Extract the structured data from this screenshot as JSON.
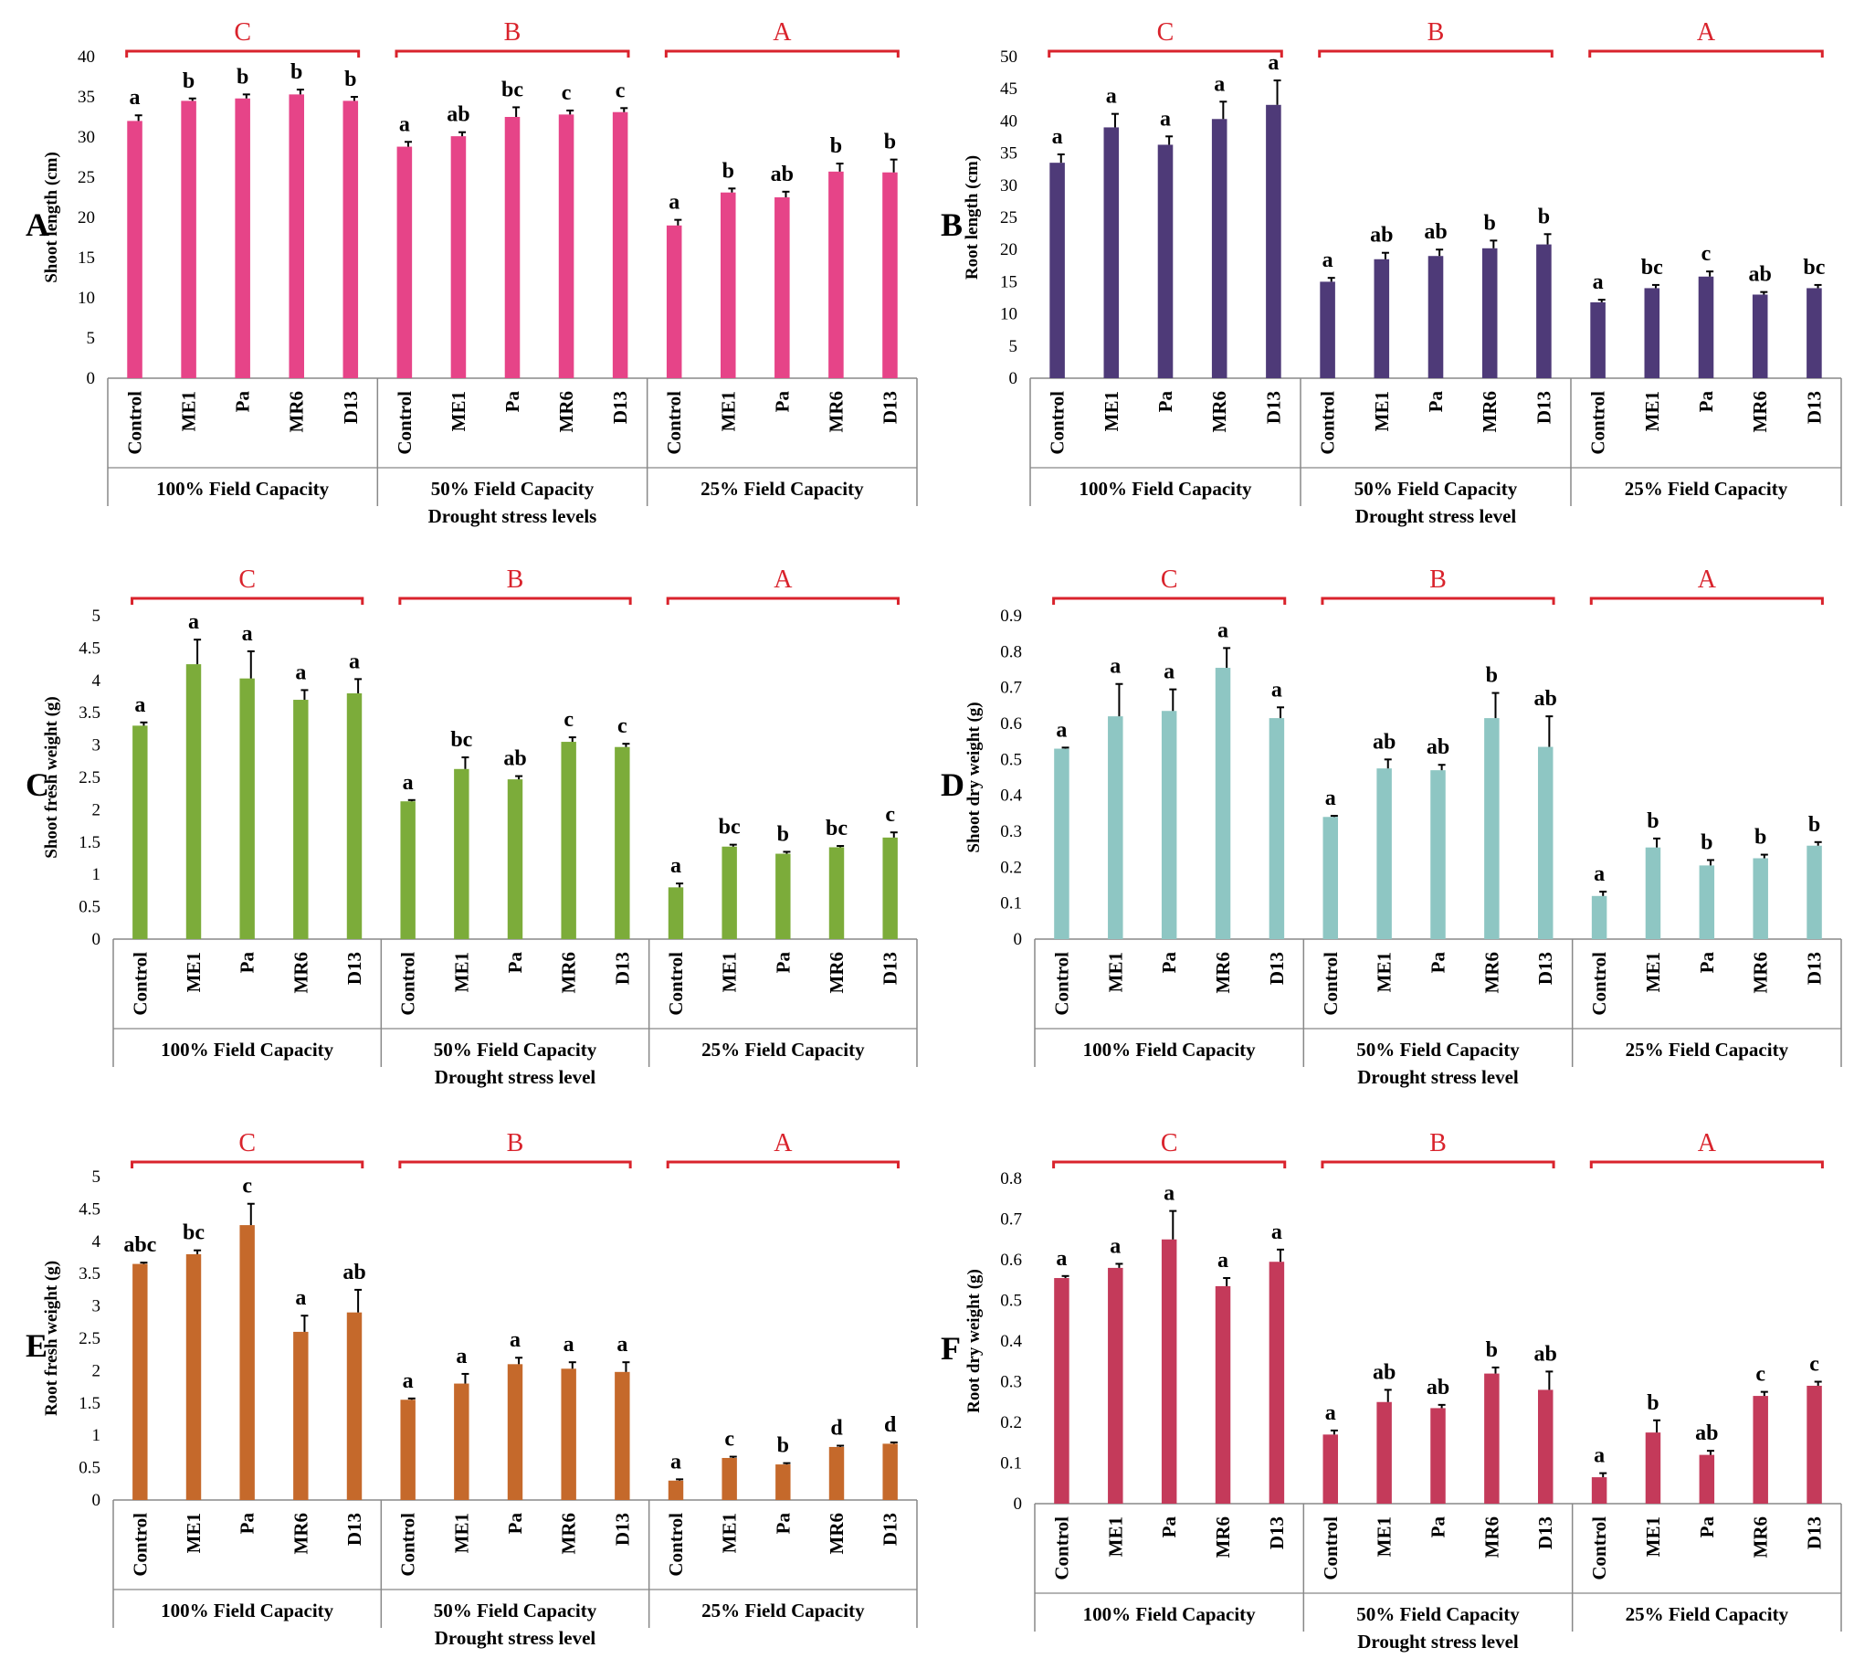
{
  "chart_data": [
    {
      "panel_label": "A",
      "type": "bar",
      "color": "#e64488",
      "ylabel": "Shoot length (cm)",
      "xlabel": "Drought stress levels",
      "ylim": [
        0,
        40
      ],
      "yticks": [
        "0",
        "5",
        "10",
        "15",
        "20",
        "25",
        "30",
        "35",
        "40"
      ],
      "groups": [
        {
          "name": "100% Field Capacity",
          "letter": "C",
          "categories": [
            "Control",
            "ME1",
            "Pa",
            "MR6",
            "D13"
          ],
          "values": [
            32,
            34.5,
            34.8,
            35.3,
            34.5
          ],
          "errors": [
            0.7,
            0.3,
            0.5,
            0.6,
            0.5
          ],
          "sig": [
            "a",
            "b",
            "b",
            "b",
            "b"
          ]
        },
        {
          "name": "50% Field Capacity",
          "letter": "B",
          "categories": [
            "Control",
            "ME1",
            "Pa",
            "MR6",
            "D13"
          ],
          "values": [
            28.8,
            30.1,
            32.5,
            32.8,
            33.1
          ],
          "errors": [
            0.6,
            0.5,
            1.2,
            0.5,
            0.5
          ],
          "sig": [
            "a",
            "ab",
            "bc",
            "c",
            "c"
          ]
        },
        {
          "name": "25% Field Capacity",
          "letter": "A",
          "categories": [
            "Control",
            "ME1",
            "Pa",
            "MR6",
            "D13"
          ],
          "values": [
            19,
            23.1,
            22.5,
            25.7,
            25.6
          ],
          "errors": [
            0.7,
            0.5,
            0.7,
            1.0,
            1.6
          ],
          "sig": [
            "a",
            "b",
            "ab",
            "b",
            "b"
          ]
        }
      ]
    },
    {
      "panel_label": "B",
      "type": "bar",
      "color": "#4e3a78",
      "ylabel": "Root length (cm)",
      "xlabel": "Drought stress level",
      "ylim": [
        0,
        50
      ],
      "yticks": [
        "0",
        "5",
        "10",
        "15",
        "20",
        "25",
        "30",
        "35",
        "40",
        "45",
        "50"
      ],
      "groups": [
        {
          "name": "100% Field Capacity",
          "letter": "C",
          "categories": [
            "Control",
            "ME1",
            "Pa",
            "MR6",
            "D13"
          ],
          "values": [
            33.5,
            39,
            36.3,
            40.3,
            42.5
          ],
          "errors": [
            1.3,
            2.1,
            1.3,
            2.7,
            3.8
          ],
          "sig": [
            "a",
            "a",
            "a",
            "a",
            "a"
          ]
        },
        {
          "name": "50% Field Capacity",
          "letter": "B",
          "categories": [
            "Control",
            "ME1",
            "Pa",
            "MR6",
            "D13"
          ],
          "values": [
            15,
            18.5,
            19,
            20.2,
            20.8
          ],
          "errors": [
            0.6,
            1.0,
            1.0,
            1.2,
            1.6
          ],
          "sig": [
            "a",
            "ab",
            "ab",
            "b",
            "b"
          ]
        },
        {
          "name": "25% Field Capacity",
          "letter": "A",
          "categories": [
            "Control",
            "ME1",
            "Pa",
            "MR6",
            "D13"
          ],
          "values": [
            11.8,
            14,
            15.8,
            13,
            14
          ],
          "errors": [
            0.4,
            0.5,
            0.8,
            0.4,
            0.5
          ],
          "sig": [
            "a",
            "bc",
            "c",
            "ab",
            "bc"
          ]
        }
      ]
    },
    {
      "panel_label": "C",
      "type": "bar",
      "color": "#7cac3a",
      "ylabel": "Shoot fresh weight (g)",
      "xlabel": "Drought stress level",
      "ylim": [
        0,
        5
      ],
      "yticks": [
        "0",
        "0.5",
        "1",
        "1.5",
        "2",
        "2.5",
        "3",
        "3.5",
        "4",
        "4.5",
        "5"
      ],
      "groups": [
        {
          "name": "100% Field Capacity",
          "letter": "C",
          "categories": [
            "Control",
            "ME1",
            "Pa",
            "MR6",
            "D13"
          ],
          "values": [
            3.3,
            4.25,
            4.03,
            3.7,
            3.8
          ],
          "errors": [
            0.05,
            0.38,
            0.42,
            0.15,
            0.22
          ],
          "sig": [
            "a",
            "a",
            "a",
            "a",
            "a"
          ]
        },
        {
          "name": "50% Field Capacity",
          "letter": "B",
          "categories": [
            "Control",
            "ME1",
            "Pa",
            "MR6",
            "D13"
          ],
          "values": [
            2.13,
            2.63,
            2.47,
            3.05,
            2.97
          ],
          "errors": [
            0.02,
            0.18,
            0.05,
            0.07,
            0.05
          ],
          "sig": [
            "a",
            "bc",
            "ab",
            "c",
            "c"
          ]
        },
        {
          "name": "25% Field Capacity",
          "letter": "A",
          "categories": [
            "Control",
            "ME1",
            "Pa",
            "MR6",
            "D13"
          ],
          "values": [
            0.8,
            1.43,
            1.32,
            1.42,
            1.57
          ],
          "errors": [
            0.06,
            0.03,
            0.03,
            0.02,
            0.08
          ],
          "sig": [
            "a",
            "bc",
            "b",
            "bc",
            "c"
          ]
        }
      ]
    },
    {
      "panel_label": "D",
      "type": "bar",
      "color": "#8ec6c3",
      "ylabel": "Shoot dry weight (g)",
      "xlabel": "Drought stress level",
      "ylim": [
        0,
        0.9
      ],
      "yticks": [
        "0",
        "0.1",
        "0.2",
        "0.3",
        "0.4",
        "0.5",
        "0.6",
        "0.7",
        "0.8",
        "0.9"
      ],
      "groups": [
        {
          "name": "100% Field Capacity",
          "letter": "C",
          "categories": [
            "Control",
            "ME1",
            "Pa",
            "MR6",
            "D13"
          ],
          "values": [
            0.53,
            0.62,
            0.635,
            0.755,
            0.615
          ],
          "errors": [
            0.003,
            0.09,
            0.06,
            0.055,
            0.03
          ],
          "sig": [
            "a",
            "a",
            "a",
            "a",
            "a"
          ]
        },
        {
          "name": "50% Field Capacity",
          "letter": "B",
          "categories": [
            "Control",
            "ME1",
            "Pa",
            "MR6",
            "D13"
          ],
          "values": [
            0.34,
            0.475,
            0.47,
            0.615,
            0.535
          ],
          "errors": [
            0.003,
            0.025,
            0.015,
            0.07,
            0.085
          ],
          "sig": [
            "a",
            "ab",
            "ab",
            "b",
            "ab"
          ]
        },
        {
          "name": "25% Field Capacity",
          "letter": "A",
          "categories": [
            "Control",
            "ME1",
            "Pa",
            "MR6",
            "D13"
          ],
          "values": [
            0.12,
            0.255,
            0.205,
            0.225,
            0.26
          ],
          "errors": [
            0.012,
            0.025,
            0.015,
            0.01,
            0.01
          ],
          "sig": [
            "a",
            "b",
            "b",
            "b",
            "b"
          ]
        }
      ]
    },
    {
      "panel_label": "E",
      "type": "bar",
      "color": "#c5692b",
      "ylabel": "Root fresh weight (g)",
      "xlabel": "Drought stress level",
      "ylim": [
        0,
        5
      ],
      "yticks": [
        "0",
        "0.5",
        "1",
        "1.5",
        "2",
        "2.5",
        "3",
        "3.5",
        "4",
        "4.5",
        "5"
      ],
      "groups": [
        {
          "name": "100% Field Capacity",
          "letter": "C",
          "categories": [
            "Control",
            "ME1",
            "Pa",
            "MR6",
            "D13"
          ],
          "values": [
            3.65,
            3.8,
            4.25,
            2.6,
            2.9
          ],
          "errors": [
            0.02,
            0.06,
            0.33,
            0.25,
            0.35
          ],
          "sig": [
            "abc",
            "bc",
            "c",
            "a",
            "ab"
          ]
        },
        {
          "name": "50% Field Capacity",
          "letter": "B",
          "categories": [
            "Control",
            "ME1",
            "Pa",
            "MR6",
            "D13"
          ],
          "values": [
            1.55,
            1.8,
            2.1,
            2.03,
            1.98
          ],
          "errors": [
            0.02,
            0.15,
            0.1,
            0.1,
            0.15
          ],
          "sig": [
            "a",
            "a",
            "a",
            "a",
            "a"
          ]
        },
        {
          "name": "25% Field Capacity",
          "letter": "A",
          "categories": [
            "Control",
            "ME1",
            "Pa",
            "MR6",
            "D13"
          ],
          "values": [
            0.3,
            0.65,
            0.55,
            0.82,
            0.87
          ],
          "errors": [
            0.02,
            0.02,
            0.02,
            0.02,
            0.02
          ],
          "sig": [
            "a",
            "c",
            "b",
            "d",
            "d"
          ]
        }
      ]
    },
    {
      "panel_label": "F",
      "type": "bar",
      "color": "#c43a5a",
      "ylabel": "Root dry weight (g)",
      "xlabel": "Drought stress level",
      "ylim": [
        0,
        0.8
      ],
      "yticks": [
        "0",
        "0.1",
        "0.2",
        "0.3",
        "0.4",
        "0.5",
        "0.6",
        "0.7",
        "0.8"
      ],
      "groups": [
        {
          "name": "100% Field Capacity",
          "letter": "C",
          "categories": [
            "Control",
            "ME1",
            "Pa",
            "MR6",
            "D13"
          ],
          "values": [
            0.555,
            0.58,
            0.65,
            0.535,
            0.595
          ],
          "errors": [
            0.005,
            0.01,
            0.07,
            0.02,
            0.03
          ],
          "sig": [
            "a",
            "a",
            "a",
            "a",
            "a"
          ]
        },
        {
          "name": "50% Field Capacity",
          "letter": "B",
          "categories": [
            "Control",
            "ME1",
            "Pa",
            "MR6",
            "D13"
          ],
          "values": [
            0.17,
            0.25,
            0.235,
            0.32,
            0.28
          ],
          "errors": [
            0.01,
            0.03,
            0.008,
            0.015,
            0.045
          ],
          "sig": [
            "a",
            "ab",
            "ab",
            "b",
            "ab"
          ]
        },
        {
          "name": "25% Field Capacity",
          "letter": "A",
          "categories": [
            "Control",
            "ME1",
            "Pa",
            "MR6",
            "D13"
          ],
          "values": [
            0.065,
            0.175,
            0.12,
            0.265,
            0.29
          ],
          "errors": [
            0.01,
            0.03,
            0.01,
            0.01,
            0.01
          ],
          "sig": [
            "a",
            "b",
            "ab",
            "c",
            "c"
          ]
        }
      ]
    }
  ]
}
